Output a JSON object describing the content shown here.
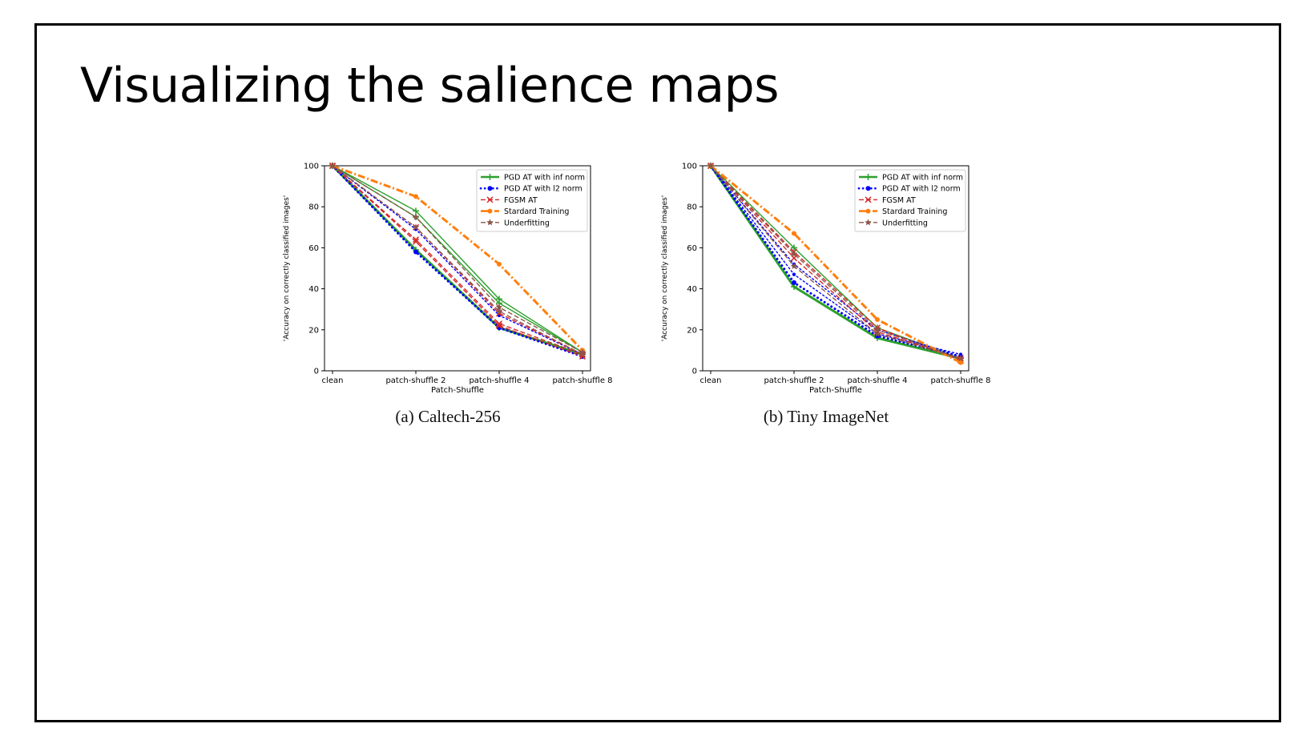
{
  "slide": {
    "title": "Visualizing the salience maps"
  },
  "chart_data": [
    {
      "type": "line",
      "caption": "(a) Caltech-256",
      "xlabel": "Patch-Shuffle",
      "ylabel": "'Accuracy on correctly classified images'",
      "categories": [
        "clean",
        "patch-shuffle 2",
        "patch-shuffle 4",
        "patch-shuffle 8"
      ],
      "ylim": [
        0,
        100
      ],
      "yticks": [
        0,
        20,
        40,
        60,
        80,
        100
      ],
      "legend_position": "top-right",
      "legend": [
        {
          "label": "PGD AT with inf norm",
          "color": "#2ca02c",
          "style": "solid"
        },
        {
          "label": "PGD AT with l2 norm",
          "color": "#0000ff",
          "style": "dotted"
        },
        {
          "label": "FGSM AT",
          "color": "#d62728",
          "style": "dashed"
        },
        {
          "label": "Stardard Training",
          "color": "#ff7f0e",
          "style": "dashdot"
        },
        {
          "label": "Underfitting",
          "color": "#8c564b",
          "style": "dashed"
        }
      ],
      "series": [
        {
          "name": "PGD AT with inf norm",
          "color": "#2ca02c",
          "style": "solid",
          "width": 3,
          "values": [
            100,
            59,
            21,
            8
          ]
        },
        {
          "name": "PGD AT with inf norm",
          "color": "#2ca02c",
          "style": "solid",
          "width": 1.4,
          "values": [
            100,
            78,
            35,
            9
          ]
        },
        {
          "name": "PGD AT with inf norm",
          "color": "#2ca02c",
          "style": "solid",
          "width": 1.4,
          "values": [
            100,
            75,
            33,
            9
          ]
        },
        {
          "name": "PGD AT with l2 norm",
          "color": "#0000ff",
          "style": "dotted",
          "width": 3,
          "values": [
            100,
            58,
            21,
            7
          ]
        },
        {
          "name": "PGD AT with l2 norm",
          "color": "#0000ff",
          "style": "dotted",
          "width": 1.4,
          "values": [
            100,
            69,
            27,
            8
          ]
        },
        {
          "name": "FGSM AT",
          "color": "#d62728",
          "style": "dashed",
          "width": 1.4,
          "values": [
            100,
            63,
            22,
            7
          ]
        },
        {
          "name": "FGSM AT",
          "color": "#d62728",
          "style": "dashed",
          "width": 1.4,
          "values": [
            100,
            70,
            28,
            8
          ]
        },
        {
          "name": "FGSM AT",
          "color": "#d62728",
          "style": "dashed",
          "width": 1.4,
          "values": [
            100,
            64,
            23,
            8
          ]
        },
        {
          "name": "Stardard Training",
          "color": "#ff7f0e",
          "style": "dashdot",
          "width": 3,
          "values": [
            100,
            85,
            52,
            10
          ]
        },
        {
          "name": "Underfitting",
          "color": "#8c564b",
          "style": "dashed",
          "width": 1.4,
          "values": [
            100,
            70,
            29,
            8
          ]
        },
        {
          "name": "Underfitting",
          "color": "#8c564b",
          "style": "dashed",
          "width": 1.4,
          "values": [
            100,
            75,
            31,
            9
          ]
        }
      ]
    },
    {
      "type": "line",
      "caption": "(b) Tiny ImageNet",
      "xlabel": "Patch-Shuffle",
      "ylabel": "'Accuracy on correctly classified images'",
      "categories": [
        "clean",
        "patch-shuffle 2",
        "patch-shuffle 4",
        "patch-shuffle 8"
      ],
      "ylim": [
        0,
        100
      ],
      "yticks": [
        0,
        20,
        40,
        60,
        80,
        100
      ],
      "legend_position": "top-right",
      "legend": [
        {
          "label": "PGD AT with inf norm",
          "color": "#2ca02c",
          "style": "solid"
        },
        {
          "label": "PGD AT with l2 norm",
          "color": "#0000ff",
          "style": "dotted"
        },
        {
          "label": "FGSM AT",
          "color": "#d62728",
          "style": "dashed"
        },
        {
          "label": "Stardard Training",
          "color": "#ff7f0e",
          "style": "dashdot"
        },
        {
          "label": "Underfitting",
          "color": "#8c564b",
          "style": "dashed"
        }
      ],
      "series": [
        {
          "name": "PGD AT with inf norm",
          "color": "#2ca02c",
          "style": "solid",
          "width": 3,
          "values": [
            100,
            41,
            16,
            6
          ]
        },
        {
          "name": "PGD AT with inf norm",
          "color": "#2ca02c",
          "style": "solid",
          "width": 1.4,
          "values": [
            100,
            60,
            21,
            6
          ]
        },
        {
          "name": "PGD AT with l2 norm",
          "color": "#0000ff",
          "style": "dotted",
          "width": 3,
          "values": [
            100,
            43,
            17,
            7
          ]
        },
        {
          "name": "PGD AT with l2 norm",
          "color": "#0000ff",
          "style": "dotted",
          "width": 1.4,
          "values": [
            100,
            47,
            18,
            8
          ]
        },
        {
          "name": "PGD AT with l2 norm",
          "color": "#0000ff",
          "style": "dotted",
          "width": 1.4,
          "values": [
            100,
            52,
            20,
            7
          ]
        },
        {
          "name": "FGSM AT",
          "color": "#d62728",
          "style": "dashed",
          "width": 1.4,
          "values": [
            100,
            58,
            21,
            5
          ]
        },
        {
          "name": "FGSM AT",
          "color": "#d62728",
          "style": "dashed",
          "width": 1.4,
          "values": [
            100,
            55,
            19,
            6
          ]
        },
        {
          "name": "Stardard Training",
          "color": "#ff7f0e",
          "style": "dashdot",
          "width": 3,
          "values": [
            100,
            67,
            25,
            4
          ]
        },
        {
          "name": "Underfitting",
          "color": "#8c564b",
          "style": "dashed",
          "width": 1.4,
          "values": [
            100,
            57,
            20,
            6
          ]
        },
        {
          "name": "Underfitting",
          "color": "#8c564b",
          "style": "dashed",
          "width": 1.4,
          "values": [
            100,
            51,
            18,
            6
          ]
        }
      ]
    }
  ]
}
